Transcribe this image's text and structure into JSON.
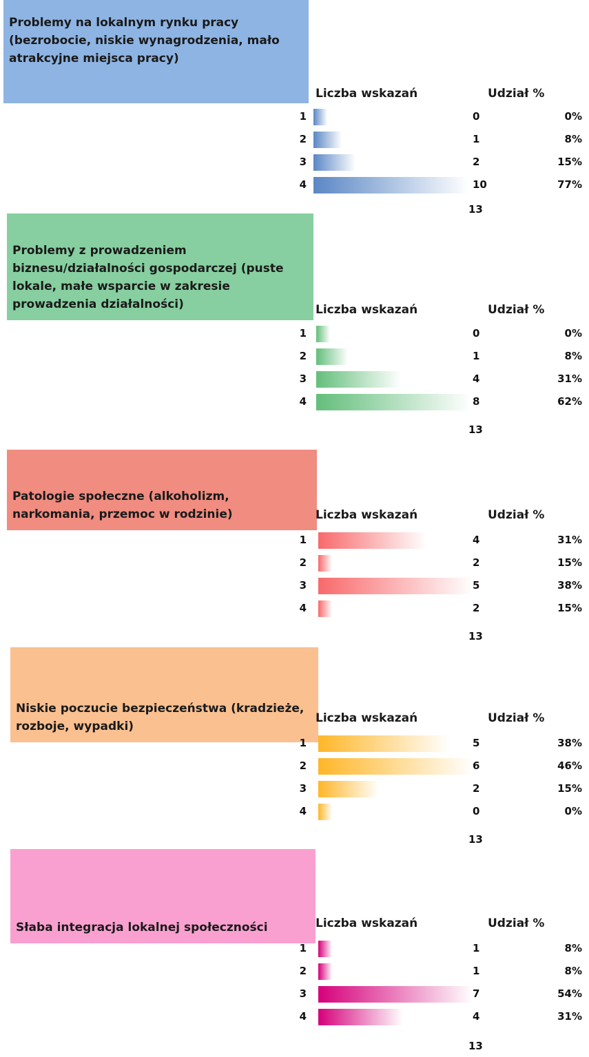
{
  "chart_data": [
    {
      "type": "bar",
      "title": "Problemy na lokalnym rynku pracy (bezrobocie, niskie wynagrodzenia, mało atrakcyjne miejsca pracy)",
      "column_labels": [
        "Liczba wskazań",
        "Udział %"
      ],
      "categories": [
        "1",
        "2",
        "3",
        "4"
      ],
      "values": [
        0,
        1,
        2,
        10
      ],
      "shares": [
        "0%",
        "8%",
        "15%",
        "77%"
      ],
      "total": 13,
      "color": "#5a87c5",
      "box_color": "#8eb4e3"
    },
    {
      "type": "bar",
      "title": "Problemy z prowadzeniem biznesu/działalności gospodarczej (puste lokale, małe wsparcie w zakresie prowadzenia działalności)",
      "column_labels": [
        "Liczba wskazań",
        "Udział %"
      ],
      "categories": [
        "1",
        "2",
        "3",
        "4"
      ],
      "values": [
        0,
        1,
        4,
        8
      ],
      "shares": [
        "0%",
        "8%",
        "31%",
        "62%"
      ],
      "total": 13,
      "color": "#63be7b",
      "box_color": "#87cfa0"
    },
    {
      "type": "bar",
      "title": "Patologie społeczne (alkoholizm, narkomania, przemoc w rodzinie)",
      "column_labels": [
        "Liczba wskazań",
        "Udział %"
      ],
      "categories": [
        "1",
        "2",
        "3",
        "4"
      ],
      "values": [
        4,
        2,
        5,
        2
      ],
      "shares": [
        "31%",
        "15%",
        "38%",
        "15%"
      ],
      "total": 13,
      "color": "#f8696b",
      "box_color": "#f08c80"
    },
    {
      "type": "bar",
      "title": "Niskie poczucie bezpieczeństwa (kradzieże, rozboje, wypadki)",
      "column_labels": [
        "Liczba wskazań",
        "Udział %"
      ],
      "categories": [
        "1",
        "2",
        "3",
        "4"
      ],
      "values": [
        5,
        6,
        2,
        0
      ],
      "shares": [
        "38%",
        "46%",
        "15%",
        "0%"
      ],
      "total": 13,
      "color": "#ffb628",
      "box_color": "#fac090"
    },
    {
      "type": "bar",
      "title": "Słaba integracja lokalnej społeczności",
      "column_labels": [
        "Liczba wskazań",
        "Udział %"
      ],
      "categories": [
        "1",
        "2",
        "3",
        "4"
      ],
      "values": [
        1,
        1,
        7,
        4
      ],
      "shares": [
        "8%",
        "8%",
        "54%",
        "31%"
      ],
      "total": 13,
      "color": "#d6007b",
      "box_color": "#f9a0d0"
    }
  ]
}
